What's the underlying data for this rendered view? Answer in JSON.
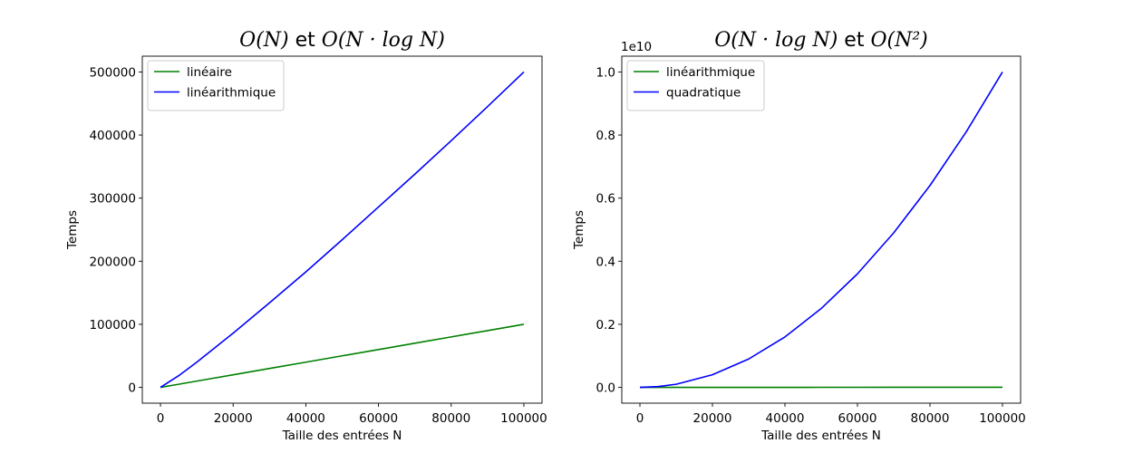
{
  "chart_data": [
    {
      "type": "line",
      "title": "O(N) et O(N · log N)",
      "title_parts": {
        "left": "O(N)",
        "joiner": " et ",
        "right": "O(N · log N)"
      },
      "xlabel": "Taille des entrées N",
      "ylabel": "Temps",
      "xlim": [
        -5000,
        105000
      ],
      "ylim": [
        -25000,
        525000
      ],
      "xticks": [
        0,
        20000,
        40000,
        60000,
        80000,
        100000
      ],
      "yticks": [
        0,
        100000,
        200000,
        300000,
        400000,
        500000
      ],
      "x_tick_labels": [
        "0",
        "20000",
        "40000",
        "60000",
        "80000",
        "100000"
      ],
      "y_tick_labels": [
        "0",
        "100000",
        "200000",
        "300000",
        "400000",
        "500000"
      ],
      "offset_text": "",
      "grid": false,
      "legend_position": "upper-left",
      "x": [
        1,
        5000,
        10000,
        20000,
        30000,
        40000,
        50000,
        60000,
        70000,
        80000,
        90000,
        100000
      ],
      "series": [
        {
          "name": "linéaire",
          "color": "#008000",
          "values": [
            1,
            5000,
            10000,
            20000,
            30000,
            40000,
            50000,
            60000,
            70000,
            80000,
            90000,
            100000
          ]
        },
        {
          "name": "linéarithmique",
          "color": "#0000ff",
          "values": [
            0,
            18500,
            40000,
            86000,
            134000,
            183000,
            234000,
            286000,
            338000,
            391000,
            445000,
            500000
          ]
        }
      ]
    },
    {
      "type": "line",
      "title": "O(N · log N) et O(N²)",
      "title_parts": {
        "left": "O(N · log N)",
        "joiner": " et ",
        "right": "O(N²)"
      },
      "xlabel": "Taille des entrées N",
      "ylabel": "Temps",
      "xlim": [
        -5000,
        105000
      ],
      "ylim": [
        -0.05,
        1.05
      ],
      "xticks": [
        0,
        20000,
        40000,
        60000,
        80000,
        100000
      ],
      "yticks": [
        0.0,
        0.2,
        0.4,
        0.6,
        0.8,
        1.0
      ],
      "x_tick_labels": [
        "0",
        "20000",
        "40000",
        "60000",
        "80000",
        "100000"
      ],
      "y_tick_labels": [
        "0.0",
        "0.2",
        "0.4",
        "0.6",
        "0.8",
        "1.0"
      ],
      "offset_text": "1e10",
      "grid": false,
      "legend_position": "upper-left",
      "x": [
        1,
        5000,
        10000,
        20000,
        30000,
        40000,
        50000,
        60000,
        70000,
        80000,
        90000,
        100000
      ],
      "series": [
        {
          "name": "linéarithmique",
          "color": "#008000",
          "values": [
            0,
            1.85e-05,
            4e-05,
            8.6e-05,
            0.000134,
            0.000183,
            0.000234,
            0.000286,
            0.000338,
            0.000391,
            0.000445,
            0.0005
          ]
        },
        {
          "name": "quadratique",
          "color": "#0000ff",
          "values": [
            0,
            0.0025,
            0.01,
            0.04,
            0.09,
            0.16,
            0.25,
            0.36,
            0.49,
            0.64,
            0.81,
            1.0
          ]
        }
      ]
    }
  ]
}
